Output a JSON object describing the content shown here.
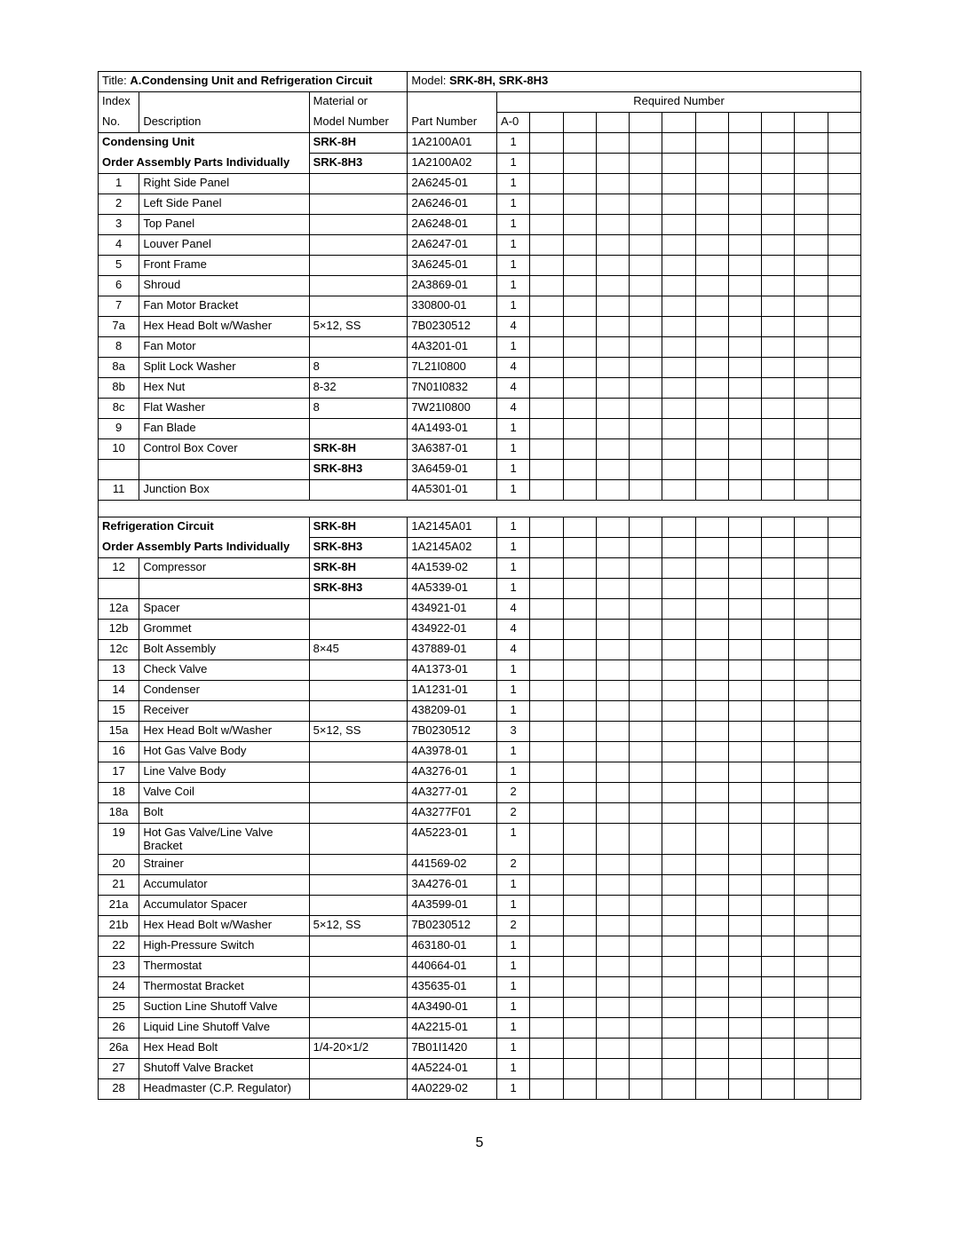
{
  "title_label": "Title:",
  "title_text": "A.Condensing Unit and Refrigeration Circuit",
  "model_label": "Model:",
  "model_text": "SRK-8H, SRK-8H3",
  "header": {
    "index_no1": "Index",
    "index_no2": "No.",
    "description": "Description",
    "material1": "Material or",
    "material2": "Model Number",
    "part_number": "Part Number",
    "required_number": "Required Number",
    "a0": "A-0"
  },
  "section1": {
    "order_note": "Order Assembly Parts Individually"
  },
  "rows": [
    {
      "idx": "",
      "desc": "Condensing Unit",
      "desc_bold": true,
      "mat": "SRK-8H",
      "mat_bold": true,
      "part": "1A2100A01",
      "q": "1"
    },
    {
      "idx": "",
      "desc": "",
      "mat": "SRK-8H3",
      "mat_bold": true,
      "part": "1A2100A02",
      "q": "1",
      "order_row": true
    },
    {
      "idx": "1",
      "desc": "Right Side Panel",
      "mat": "",
      "part": "2A6245-01",
      "q": "1"
    },
    {
      "idx": "2",
      "desc": "Left Side Panel",
      "mat": "",
      "part": "2A6246-01",
      "q": "1"
    },
    {
      "idx": "3",
      "desc": "Top Panel",
      "mat": "",
      "part": "2A6248-01",
      "q": "1"
    },
    {
      "idx": "4",
      "desc": "Louver Panel",
      "mat": "",
      "part": "2A6247-01",
      "q": "1"
    },
    {
      "idx": "5",
      "desc": "Front Frame",
      "mat": "",
      "part": "3A6245-01",
      "q": "1"
    },
    {
      "idx": "6",
      "desc": "Shroud",
      "mat": "",
      "part": "2A3869-01",
      "q": "1"
    },
    {
      "idx": "7",
      "desc": "Fan Motor Bracket",
      "mat": "",
      "part": "330800-01",
      "q": "1"
    },
    {
      "idx": "7a",
      "desc": "Hex Head Bolt w/Washer",
      "mat": "5×12, SS",
      "part": "7B0230512",
      "q": "4"
    },
    {
      "idx": "8",
      "desc": "Fan Motor",
      "mat": "",
      "part": "4A3201-01",
      "q": "1"
    },
    {
      "idx": "8a",
      "desc": "Split Lock Washer",
      "mat": "8",
      "part": "7L21I0800",
      "q": "4"
    },
    {
      "idx": "8b",
      "desc": "Hex Nut",
      "mat": "8-32",
      "part": "7N01I0832",
      "q": "4"
    },
    {
      "idx": "8c",
      "desc": "Flat Washer",
      "mat": "8",
      "part": "7W21I0800",
      "q": "4"
    },
    {
      "idx": "9",
      "desc": "Fan Blade",
      "mat": "",
      "part": "4A1493-01",
      "q": "1"
    },
    {
      "idx": "10",
      "desc": "Control Box Cover",
      "mat": "SRK-8H",
      "mat_bold": true,
      "part": "3A6387-01",
      "q": "1"
    },
    {
      "idx": "",
      "desc": "",
      "mat": "SRK-8H3",
      "mat_bold": true,
      "part": "3A6459-01",
      "q": "1"
    },
    {
      "idx": "11",
      "desc": "Junction Box",
      "mat": "",
      "part": "4A5301-01",
      "q": "1"
    }
  ],
  "section2": {
    "order_note": "Order Assembly Parts Individually"
  },
  "rows2": [
    {
      "idx": "",
      "desc": "Refrigeration Circuit",
      "desc_bold": true,
      "mat": "SRK-8H",
      "mat_bold": true,
      "part": "1A2145A01",
      "q": "1"
    },
    {
      "idx": "",
      "desc": "",
      "mat": "SRK-8H3",
      "mat_bold": true,
      "part": "1A2145A02",
      "q": "1",
      "order_row": true
    },
    {
      "idx": "12",
      "desc": "Compressor",
      "mat": "SRK-8H",
      "mat_bold": true,
      "part": "4A1539-02",
      "q": "1"
    },
    {
      "idx": "",
      "desc": "",
      "mat": "SRK-8H3",
      "mat_bold": true,
      "part": "4A5339-01",
      "q": "1"
    },
    {
      "idx": "12a",
      "desc": "Spacer",
      "mat": "",
      "part": "434921-01",
      "q": "4"
    },
    {
      "idx": "12b",
      "desc": "Grommet",
      "mat": "",
      "part": "434922-01",
      "q": "4"
    },
    {
      "idx": "12c",
      "desc": "Bolt Assembly",
      "mat": "8×45",
      "part": "437889-01",
      "q": "4"
    },
    {
      "idx": "13",
      "desc": "Check Valve",
      "mat": "",
      "part": "4A1373-01",
      "q": "1"
    },
    {
      "idx": "14",
      "desc": "Condenser",
      "mat": "",
      "part": "1A1231-01",
      "q": "1"
    },
    {
      "idx": "15",
      "desc": "Receiver",
      "mat": "",
      "part": "438209-01",
      "q": "1"
    },
    {
      "idx": "15a",
      "desc": "Hex Head Bolt w/Washer",
      "mat": "5×12, SS",
      "part": "7B0230512",
      "q": "3"
    },
    {
      "idx": "16",
      "desc": "Hot Gas Valve Body",
      "mat": "",
      "part": "4A3978-01",
      "q": "1"
    },
    {
      "idx": "17",
      "desc": "Line Valve Body",
      "mat": "",
      "part": "4A3276-01",
      "q": "1"
    },
    {
      "idx": "18",
      "desc": "Valve Coil",
      "mat": "",
      "part": "4A3277-01",
      "q": "2"
    },
    {
      "idx": "18a",
      "desc": "Bolt",
      "mat": "",
      "part": "4A3277F01",
      "q": "2"
    },
    {
      "idx": "19",
      "desc": "Hot Gas Valve/Line Valve Bracket",
      "mat": "",
      "part": "4A5223-01",
      "q": "1"
    },
    {
      "idx": "20",
      "desc": "Strainer",
      "mat": "",
      "part": "441569-02",
      "q": "2"
    },
    {
      "idx": "21",
      "desc": "Accumulator",
      "mat": "",
      "part": "3A4276-01",
      "q": "1"
    },
    {
      "idx": "21a",
      "desc": "Accumulator Spacer",
      "mat": "",
      "part": "4A3599-01",
      "q": "1"
    },
    {
      "idx": "21b",
      "desc": "Hex Head Bolt w/Washer",
      "mat": "5×12, SS",
      "part": "7B0230512",
      "q": "2"
    },
    {
      "idx": "22",
      "desc": "High-Pressure Switch",
      "mat": "",
      "part": "463180-01",
      "q": "1"
    },
    {
      "idx": "23",
      "desc": "Thermostat",
      "mat": "",
      "part": "440664-01",
      "q": "1"
    },
    {
      "idx": "24",
      "desc": "Thermostat Bracket",
      "mat": "",
      "part": "435635-01",
      "q": "1"
    },
    {
      "idx": "25",
      "desc": "Suction Line Shutoff Valve",
      "mat": "",
      "part": "4A3490-01",
      "q": "1"
    },
    {
      "idx": "26",
      "desc": "Liquid Line Shutoff Valve",
      "mat": "",
      "part": "4A2215-01",
      "q": "1"
    },
    {
      "idx": "26a",
      "desc": "Hex Head Bolt",
      "mat": "1/4-20×1/2",
      "part": "7B01I1420",
      "q": "1"
    },
    {
      "idx": "27",
      "desc": "Shutoff Valve Bracket",
      "mat": "",
      "part": "4A5224-01",
      "q": "1"
    },
    {
      "idx": "28",
      "desc": "Headmaster (C.P. Regulator)",
      "mat": "",
      "part": "4A0229-02",
      "q": "1"
    }
  ],
  "page_number": "5"
}
